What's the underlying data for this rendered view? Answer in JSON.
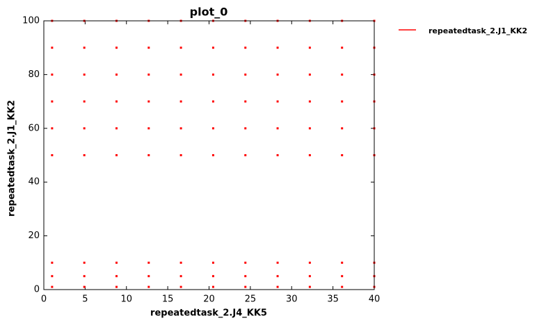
{
  "chart_data": {
    "type": "scatter",
    "title": "plot_0",
    "x_label": "repeatedtask_2.J4_KK5",
    "y_label": "repeatedtask_2.J1_KK2",
    "series": [
      {
        "name": "repeatedtask_2.J1_KK2",
        "color": "#ff0000",
        "x": [
          1,
          4.9,
          8.8,
          12.7,
          16.6,
          20.5,
          24.4,
          28.3,
          32.2,
          36.1,
          40,
          1,
          4.9,
          8.8,
          12.7,
          16.6,
          20.5,
          24.4,
          28.3,
          32.2,
          36.1,
          40,
          1,
          4.9,
          8.8,
          12.7,
          16.6,
          20.5,
          24.4,
          28.3,
          32.2,
          36.1,
          40,
          1,
          4.9,
          8.8,
          12.7,
          16.6,
          20.5,
          24.4,
          28.3,
          32.2,
          36.1,
          40,
          1,
          4.9,
          8.8,
          12.7,
          16.6,
          20.5,
          24.4,
          28.3,
          32.2,
          36.1,
          40,
          1,
          4.9,
          8.8,
          12.7,
          16.6,
          20.5,
          24.4,
          28.3,
          32.2,
          36.1,
          40,
          1,
          4.9,
          8.8,
          12.7,
          16.6,
          20.5,
          24.4,
          28.3,
          32.2,
          36.1,
          40,
          1,
          4.9,
          8.8,
          12.7,
          16.6,
          20.5,
          24.4,
          28.3,
          32.2,
          36.1,
          40,
          1,
          4.9,
          8.8,
          12.7,
          16.6,
          20.5,
          24.4,
          28.3,
          32.2,
          36.1,
          40
        ],
        "values": [
          1,
          1,
          1,
          1,
          1,
          1,
          1,
          1,
          1,
          1,
          1,
          5,
          5,
          5,
          5,
          5,
          5,
          5,
          5,
          5,
          5,
          5,
          10,
          10,
          10,
          10,
          10,
          10,
          10,
          10,
          10,
          10,
          10,
          50,
          50,
          50,
          50,
          50,
          50,
          50,
          50,
          50,
          50,
          50,
          60,
          60,
          60,
          60,
          60,
          60,
          60,
          60,
          60,
          60,
          60,
          70,
          70,
          70,
          70,
          70,
          70,
          70,
          70,
          70,
          70,
          70,
          80,
          80,
          80,
          80,
          80,
          80,
          80,
          80,
          80,
          80,
          80,
          90,
          90,
          90,
          90,
          90,
          90,
          90,
          90,
          90,
          90,
          90,
          100,
          100,
          100,
          100,
          100,
          100,
          100,
          100,
          100,
          100,
          100
        ]
      }
    ],
    "xlim": [
      0,
      40
    ],
    "xticks": [
      0,
      5,
      10,
      15,
      20,
      25,
      30,
      35,
      40
    ],
    "ylim": [
      0,
      100
    ],
    "yticks": [
      0,
      20,
      40,
      60,
      80,
      100
    ],
    "grid": false,
    "legend": "outside-upper-right"
  }
}
